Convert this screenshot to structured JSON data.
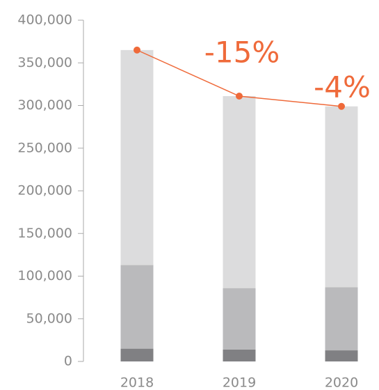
{
  "chart_data": {
    "type": "bar",
    "stacked": true,
    "categories": [
      "2018",
      "2019",
      "2020"
    ],
    "series": [
      {
        "color": "#808083",
        "values": [
          15000,
          14000,
          13000
        ]
      },
      {
        "color": "#bababc",
        "values": [
          98000,
          72000,
          74000
        ]
      },
      {
        "color": "#dcdcdd",
        "values": [
          252000,
          225000,
          212000
        ]
      },
      {
        "type": "line",
        "color": "#ef6a3a",
        "values": [
          365000,
          311000,
          299000
        ]
      }
    ],
    "annotations": [
      "-15%",
      "-4%"
    ],
    "ylim": [
      0,
      400000
    ],
    "yticks": [
      0,
      {
        "value": 50000,
        "label": "50,000"
      },
      {
        "value": 100000,
        "label": "100,000"
      },
      {
        "value": 150000,
        "label": "150,000"
      },
      {
        "value": 200000,
        "label": "200,000"
      },
      {
        "value": 250000,
        "label": "250,000"
      },
      {
        "value": 300000,
        "label": "300,000"
      },
      {
        "value": 350000,
        "label": "350,000"
      },
      {
        "value": 400000,
        "label": "400,000"
      }
    ]
  }
}
